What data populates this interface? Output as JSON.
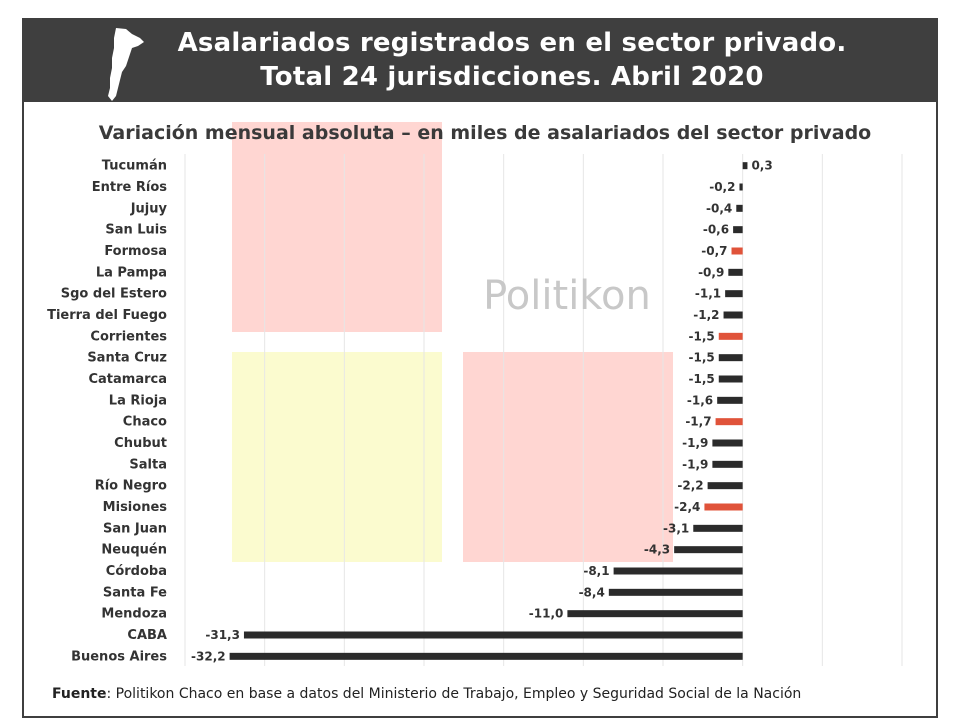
{
  "header": {
    "title_line1": "Asalariados registrados en el sector privado.",
    "title_line2": "Total 24 jurisdicciones. Abril 2020"
  },
  "watermark": "Politikon",
  "footer": {
    "source_label": "Fuente",
    "source_text": ": Politikon Chaco en base a datos del Ministerio de Trabajo, Empleo y Seguridad Social de la Nación"
  },
  "colors": {
    "header_bg": "#3f3f3f",
    "bar_default": "#2b2b2b",
    "bar_highlight": "#e0533a",
    "block_pink": "#ffd6d2",
    "block_yellow": "#fbfbcf"
  },
  "chart_data": {
    "type": "bar",
    "orientation": "horizontal",
    "title": "Variación mensual absoluta – en miles de asalariados del sector privado",
    "xlabel": "",
    "ylabel": "",
    "xlim": [
      -35,
      10
    ],
    "grid": true,
    "categories": [
      "Tucumán",
      "Entre Ríos",
      "Jujuy",
      "San Luis",
      "Formosa",
      "La Pampa",
      "Sgo del Estero",
      "Tierra del Fuego",
      "Corrientes",
      "Santa Cruz",
      "Catamarca",
      "La Rioja",
      "Chaco",
      "Chubut",
      "Salta",
      "Río Negro",
      "Misiones",
      "San Juan",
      "Neuquén",
      "Córdoba",
      "Santa Fe",
      "Mendoza",
      "CABA",
      "Buenos Aires"
    ],
    "values": [
      0.3,
      -0.2,
      -0.4,
      -0.6,
      -0.7,
      -0.9,
      -1.1,
      -1.2,
      -1.5,
      -1.5,
      -1.5,
      -1.6,
      -1.7,
      -1.9,
      -1.9,
      -2.2,
      -2.4,
      -3.1,
      -4.3,
      -8.1,
      -8.4,
      -11.0,
      -31.3,
      -32.2
    ],
    "labels": [
      "0,3",
      "-0,2",
      "-0,4",
      "-0,6",
      "-0,7",
      "-0,9",
      "-1,1",
      "-1,2",
      "-1,5",
      "-1,5",
      "-1,5",
      "-1,6",
      "-1,7",
      "-1,9",
      "-1,9",
      "-2,2",
      "-2,4",
      "-3,1",
      "-4,3",
      "-8,1",
      "-8,4",
      "-11,0",
      "-31,3",
      "-32,2"
    ],
    "highlighted": [
      "Formosa",
      "Corrientes",
      "Chaco",
      "Misiones"
    ]
  }
}
